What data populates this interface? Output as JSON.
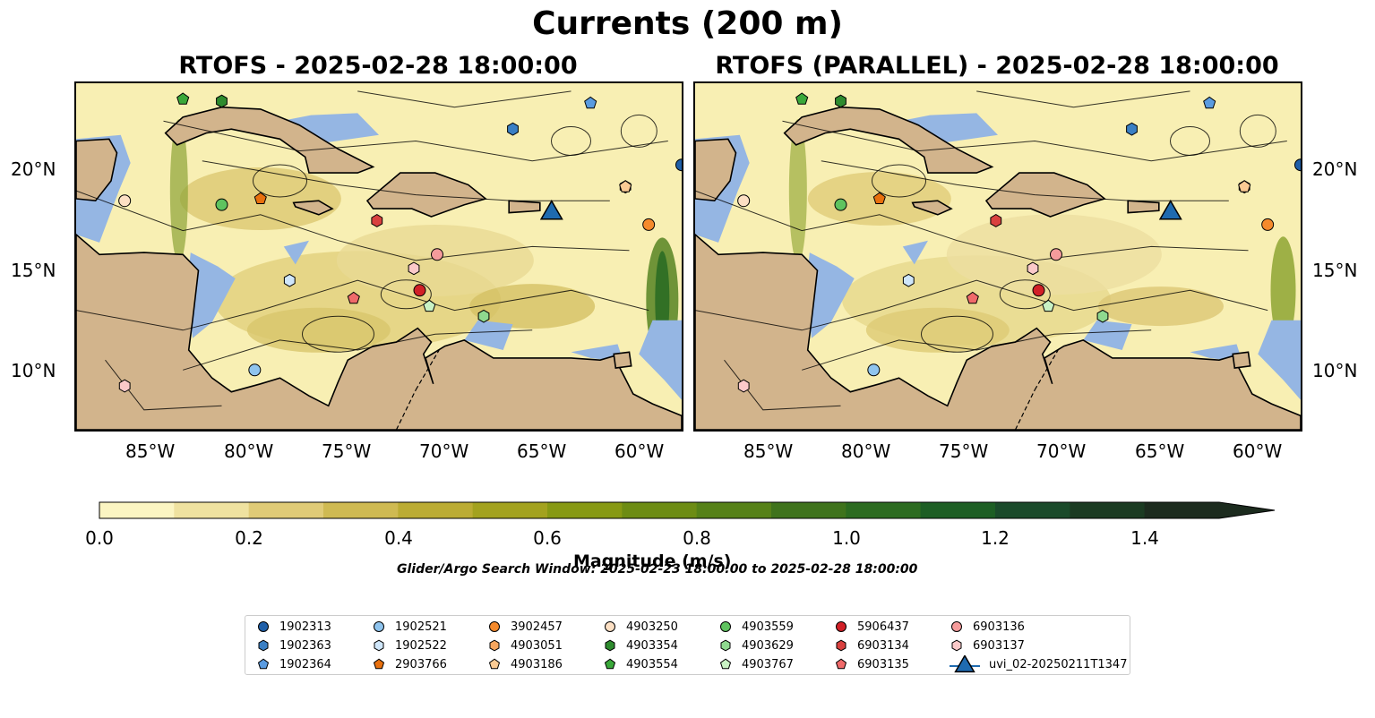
{
  "title": "Currents (200 m)",
  "panels": [
    {
      "title": "RTOFS - 2025-02-28 18:00:00"
    },
    {
      "title": "RTOFS (PARALLEL) - 2025-02-28 18:00:00"
    }
  ],
  "map": {
    "lon_range": [
      -89.5,
      -58.3
    ],
    "lat_range": [
      7,
      24.4
    ],
    "lon_ticks": [
      "85°W",
      "80°W",
      "75°W",
      "70°W",
      "65°W",
      "60°W"
    ],
    "lat_ticks": [
      "20°N",
      "15°N",
      "10°N"
    ],
    "colors": {
      "land": "#d2b48c",
      "shallow": "#95b6e3",
      "coast": "#000000",
      "river": "#a3b5cf"
    }
  },
  "colorbar": {
    "label": "Magnitude (m/s)",
    "min": 0.0,
    "max": 1.5,
    "extend": "max",
    "ticks": [
      "0.0",
      "0.2",
      "0.4",
      "0.6",
      "0.8",
      "1.0",
      "1.2",
      "1.4"
    ],
    "colors": [
      "#fbf5c2",
      "#efe2a0",
      "#e0cb77",
      "#cfba52",
      "#bbac34",
      "#a3a21f",
      "#879914",
      "#6d8c14",
      "#568118",
      "#3f731c",
      "#2c6b20",
      "#1d5e24",
      "#1a4a2a",
      "#1b3b22",
      "#1c2b1e"
    ]
  },
  "search_window": "Glider/Argo Search Window: 2025-02-23 18:00:00 to 2025-02-28 18:00:00",
  "legend": [
    {
      "id": "1902313",
      "color": "#1f5fa8",
      "marker": "circle"
    },
    {
      "id": "1902363",
      "color": "#3a7fc4",
      "marker": "hexagon"
    },
    {
      "id": "1902364",
      "color": "#5a9be0",
      "marker": "pentagon"
    },
    {
      "id": "1902521",
      "color": "#8fc4ee",
      "marker": "circle"
    },
    {
      "id": "1902522",
      "color": "#cfe6fa",
      "marker": "hexagon"
    },
    {
      "id": "2903766",
      "color": "#e8700e",
      "marker": "pentagon"
    },
    {
      "id": "3902457",
      "color": "#f58a2c",
      "marker": "circle"
    },
    {
      "id": "4903051",
      "color": "#f7a65e",
      "marker": "hexagon"
    },
    {
      "id": "4903186",
      "color": "#fbcb94",
      "marker": "pentagon"
    },
    {
      "id": "4903250",
      "color": "#fde0c4",
      "marker": "circle"
    },
    {
      "id": "4903354",
      "color": "#2e8b2e",
      "marker": "hexagon"
    },
    {
      "id": "4903554",
      "color": "#3aa83a",
      "marker": "pentagon"
    },
    {
      "id": "4903559",
      "color": "#5fc35f",
      "marker": "circle"
    },
    {
      "id": "4903629",
      "color": "#8fd98f",
      "marker": "hexagon"
    },
    {
      "id": "4903767",
      "color": "#c9f2c4",
      "marker": "pentagon"
    },
    {
      "id": "5906437",
      "color": "#d12027",
      "marker": "circle"
    },
    {
      "id": "6903134",
      "color": "#d9413f",
      "marker": "hexagon"
    },
    {
      "id": "6903135",
      "color": "#f06a6a",
      "marker": "pentagon"
    },
    {
      "id": "6903136",
      "color": "#f59b9b",
      "marker": "circle"
    },
    {
      "id": "6903137",
      "color": "#fbc9c9",
      "marker": "hexagon"
    },
    {
      "id": "uvi_02-20250211T1347",
      "color": "#1f6bb0",
      "marker": "triangle"
    }
  ],
  "markers": [
    {
      "id": "1902313",
      "lon": -58.3,
      "lat": 20.3
    },
    {
      "id": "1902363",
      "lon": -67.0,
      "lat": 22.1
    },
    {
      "id": "1902364",
      "lon": -63.0,
      "lat": 23.4
    },
    {
      "id": "1902521",
      "lon": -80.3,
      "lat": 10.0
    },
    {
      "id": "1902522",
      "lon": -78.5,
      "lat": 14.5
    },
    {
      "id": "2903766",
      "lon": -80.0,
      "lat": 18.6
    },
    {
      "id": "3902457",
      "lon": -60.0,
      "lat": 17.3
    },
    {
      "id": "4903051",
      "lon": -61.2,
      "lat": 19.2
    },
    {
      "id": "4903186",
      "lon": -61.2,
      "lat": 19.2
    },
    {
      "id": "4903250",
      "lon": -87.0,
      "lat": 18.5
    },
    {
      "id": "4903354",
      "lon": -82.0,
      "lat": 23.5
    },
    {
      "id": "4903554",
      "lon": -84.0,
      "lat": 23.6
    },
    {
      "id": "4903559",
      "lon": -82.0,
      "lat": 18.3
    },
    {
      "id": "4903629",
      "lon": -68.5,
      "lat": 12.7
    },
    {
      "id": "4903767",
      "lon": -71.3,
      "lat": 13.2
    },
    {
      "id": "5906437",
      "lon": -71.8,
      "lat": 14.0
    },
    {
      "id": "6903134",
      "lon": -74.0,
      "lat": 17.5
    },
    {
      "id": "6903135",
      "lon": -75.2,
      "lat": 13.6
    },
    {
      "id": "6903136",
      "lon": -70.9,
      "lat": 15.8
    },
    {
      "id": "6903137",
      "lon": -72.1,
      "lat": 15.1
    },
    {
      "id": "6903137",
      "lon": -87.0,
      "lat": 9.2
    },
    {
      "id": "uvi_02-20250211T1347",
      "lon": -65.0,
      "lat": 18.0
    }
  ]
}
